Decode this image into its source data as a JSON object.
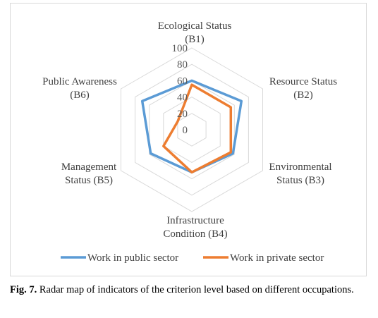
{
  "chart_data": {
    "type": "radar",
    "axes": [
      {
        "lines": [
          "Ecological Status",
          "(B1)"
        ]
      },
      {
        "lines": [
          "Resource Status",
          "(B2)"
        ]
      },
      {
        "lines": [
          "Environmental",
          "Status (B3)"
        ]
      },
      {
        "lines": [
          "Infrastructure",
          "Condition (B4)"
        ]
      },
      {
        "lines": [
          "Management",
          "Status (B5)"
        ]
      },
      {
        "lines": [
          "Public Awareness",
          "(B6)"
        ]
      }
    ],
    "ticks": [
      "0",
      "20",
      "40",
      "60",
      "80",
      "100"
    ],
    "rlim": [
      0,
      100
    ],
    "grid": true,
    "legend_position": "bottom",
    "series": [
      {
        "name": "Work in public sector",
        "color": "#5b9bd5",
        "values": [
          60,
          70,
          58,
          52,
          58,
          70
        ]
      },
      {
        "name": "Work in private sector",
        "color": "#ed7d31",
        "values": [
          55,
          55,
          55,
          52,
          40,
          20
        ]
      }
    ]
  },
  "caption": {
    "label": "Fig. 7.",
    "text": " Radar map of indicators of the criterion level based on different occupations."
  }
}
